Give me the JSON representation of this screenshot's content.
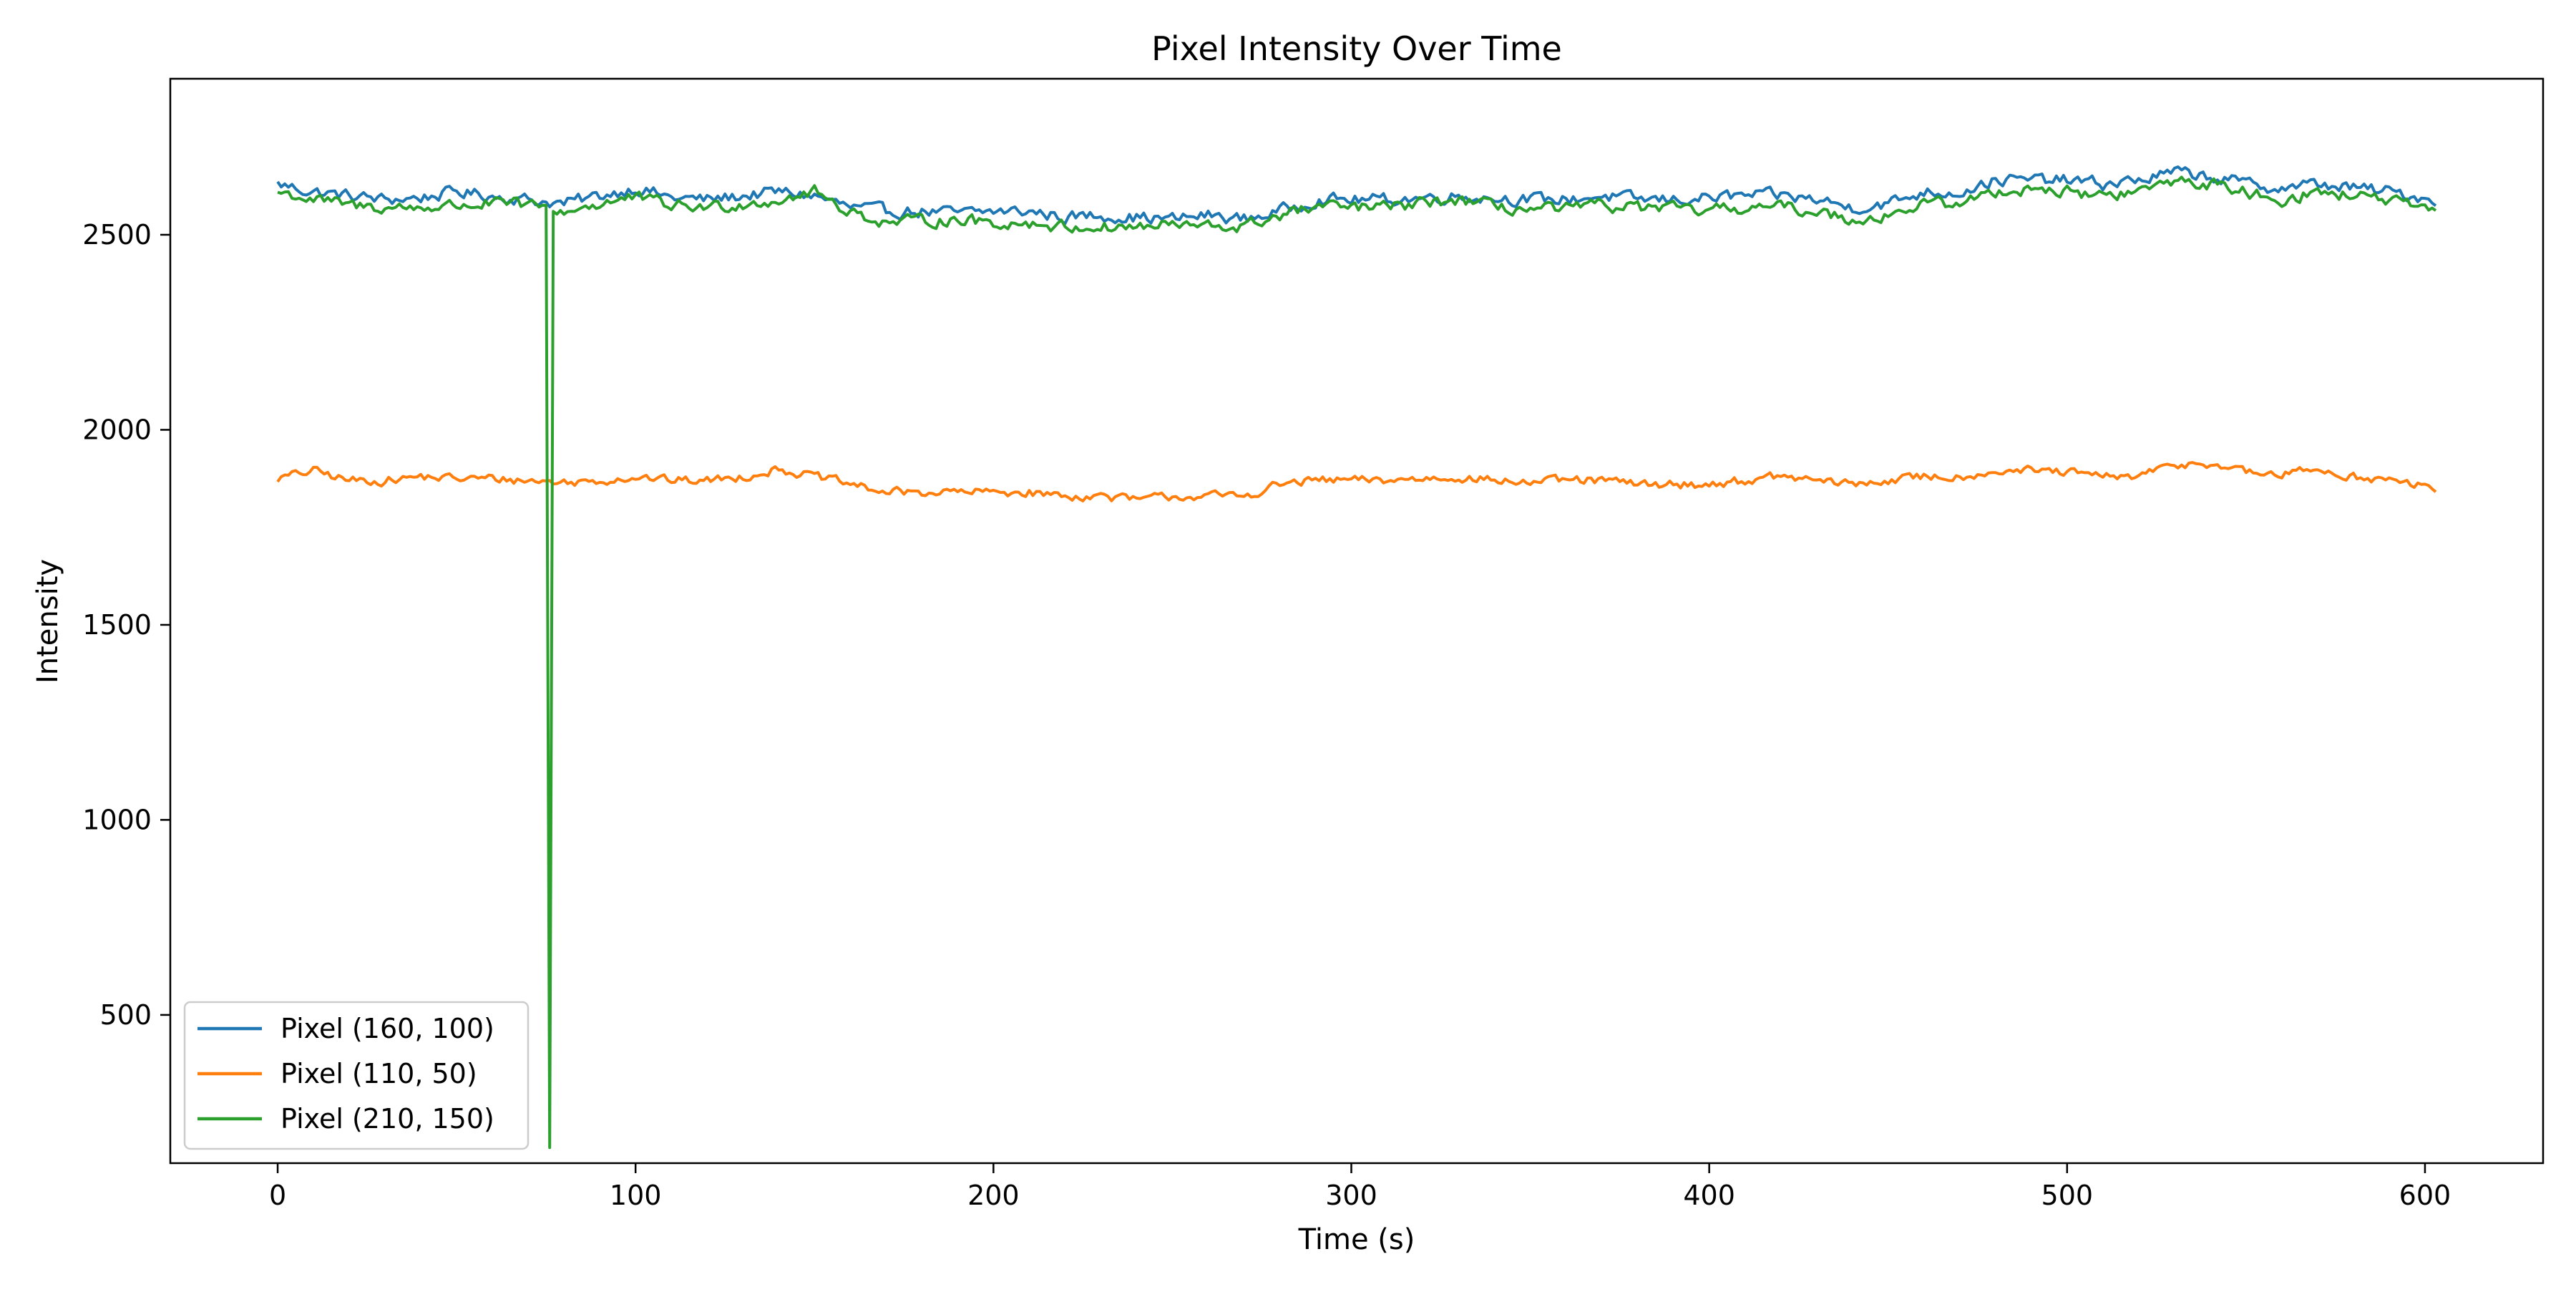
{
  "chart_data": {
    "type": "line",
    "title": "Pixel Intensity Over Time",
    "xlabel": "Time (s)",
    "ylabel": "Intensity",
    "xlim": [
      -30,
      633
    ],
    "ylim": [
      120,
      2900
    ],
    "xticks": [
      0,
      100,
      200,
      300,
      400,
      500,
      600
    ],
    "yticks": [
      500,
      1000,
      1500,
      2000,
      2500
    ],
    "grid": false,
    "legend_position": "lower-left",
    "x_range": [
      0,
      603
    ],
    "series": [
      {
        "name": "Pixel (160, 100)",
        "color": "#1f77b4",
        "anchors": [
          [
            0,
            2630
          ],
          [
            10,
            2610
          ],
          [
            20,
            2600
          ],
          [
            30,
            2590
          ],
          [
            40,
            2595
          ],
          [
            50,
            2610
          ],
          [
            60,
            2600
          ],
          [
            70,
            2590
          ],
          [
            80,
            2580
          ],
          [
            90,
            2600
          ],
          [
            100,
            2620
          ],
          [
            110,
            2595
          ],
          [
            120,
            2590
          ],
          [
            130,
            2600
          ],
          [
            140,
            2610
          ],
          [
            150,
            2600
          ],
          [
            160,
            2570
          ],
          [
            170,
            2560
          ],
          [
            180,
            2560
          ],
          [
            190,
            2555
          ],
          [
            200,
            2560
          ],
          [
            210,
            2560
          ],
          [
            220,
            2545
          ],
          [
            230,
            2550
          ],
          [
            240,
            2545
          ],
          [
            250,
            2540
          ],
          [
            260,
            2550
          ],
          [
            270,
            2540
          ],
          [
            280,
            2560
          ],
          [
            290,
            2590
          ],
          [
            300,
            2590
          ],
          [
            310,
            2590
          ],
          [
            320,
            2595
          ],
          [
            330,
            2600
          ],
          [
            340,
            2595
          ],
          [
            350,
            2590
          ],
          [
            360,
            2590
          ],
          [
            370,
            2600
          ],
          [
            380,
            2590
          ],
          [
            390,
            2590
          ],
          [
            400,
            2595
          ],
          [
            410,
            2600
          ],
          [
            420,
            2600
          ],
          [
            430,
            2590
          ],
          [
            440,
            2570
          ],
          [
            450,
            2580
          ],
          [
            460,
            2610
          ],
          [
            470,
            2610
          ],
          [
            480,
            2640
          ],
          [
            490,
            2640
          ],
          [
            500,
            2640
          ],
          [
            510,
            2630
          ],
          [
            520,
            2640
          ],
          [
            530,
            2660
          ],
          [
            540,
            2650
          ],
          [
            550,
            2630
          ],
          [
            560,
            2620
          ],
          [
            570,
            2630
          ],
          [
            580,
            2620
          ],
          [
            590,
            2610
          ],
          [
            603,
            2590
          ]
        ],
        "noise": 25
      },
      {
        "name": "Pixel (110, 50)",
        "color": "#ff7f0e",
        "anchors": [
          [
            0,
            1875
          ],
          [
            10,
            1895
          ],
          [
            20,
            1870
          ],
          [
            30,
            1870
          ],
          [
            40,
            1880
          ],
          [
            50,
            1875
          ],
          [
            60,
            1875
          ],
          [
            70,
            1870
          ],
          [
            80,
            1865
          ],
          [
            90,
            1870
          ],
          [
            100,
            1880
          ],
          [
            110,
            1870
          ],
          [
            120,
            1870
          ],
          [
            130,
            1880
          ],
          [
            140,
            1900
          ],
          [
            150,
            1880
          ],
          [
            160,
            1860
          ],
          [
            170,
            1840
          ],
          [
            180,
            1840
          ],
          [
            190,
            1840
          ],
          [
            200,
            1840
          ],
          [
            210,
            1840
          ],
          [
            220,
            1830
          ],
          [
            230,
            1830
          ],
          [
            240,
            1820
          ],
          [
            250,
            1830
          ],
          [
            260,
            1830
          ],
          [
            270,
            1830
          ],
          [
            280,
            1860
          ],
          [
            290,
            1870
          ],
          [
            300,
            1870
          ],
          [
            310,
            1870
          ],
          [
            320,
            1875
          ],
          [
            330,
            1880
          ],
          [
            340,
            1870
          ],
          [
            350,
            1865
          ],
          [
            360,
            1870
          ],
          [
            370,
            1870
          ],
          [
            380,
            1860
          ],
          [
            390,
            1860
          ],
          [
            400,
            1860
          ],
          [
            410,
            1870
          ],
          [
            420,
            1880
          ],
          [
            430,
            1870
          ],
          [
            440,
            1860
          ],
          [
            450,
            1870
          ],
          [
            460,
            1880
          ],
          [
            470,
            1880
          ],
          [
            480,
            1895
          ],
          [
            490,
            1895
          ],
          [
            500,
            1890
          ],
          [
            510,
            1880
          ],
          [
            520,
            1880
          ],
          [
            530,
            1910
          ],
          [
            540,
            1915
          ],
          [
            550,
            1890
          ],
          [
            560,
            1885
          ],
          [
            570,
            1900
          ],
          [
            580,
            1880
          ],
          [
            590,
            1870
          ],
          [
            603,
            1850
          ]
        ],
        "noise": 18
      },
      {
        "name": "Pixel (210, 150)",
        "color": "#2ca02c",
        "anchors": [
          [
            0,
            2610
          ],
          [
            10,
            2590
          ],
          [
            20,
            2575
          ],
          [
            30,
            2570
          ],
          [
            40,
            2570
          ],
          [
            50,
            2575
          ],
          [
            60,
            2580
          ],
          [
            70,
            2575
          ],
          [
            74,
            2570
          ],
          [
            75,
            2570
          ],
          [
            76,
            160
          ],
          [
            77,
            2560
          ],
          [
            80,
            2560
          ],
          [
            90,
            2580
          ],
          [
            100,
            2595
          ],
          [
            110,
            2575
          ],
          [
            120,
            2570
          ],
          [
            130,
            2580
          ],
          [
            140,
            2590
          ],
          [
            150,
            2610
          ],
          [
            160,
            2560
          ],
          [
            170,
            2530
          ],
          [
            180,
            2535
          ],
          [
            190,
            2540
          ],
          [
            200,
            2530
          ],
          [
            210,
            2530
          ],
          [
            220,
            2520
          ],
          [
            230,
            2520
          ],
          [
            240,
            2520
          ],
          [
            250,
            2525
          ],
          [
            260,
            2520
          ],
          [
            270,
            2520
          ],
          [
            280,
            2550
          ],
          [
            290,
            2570
          ],
          [
            300,
            2570
          ],
          [
            310,
            2570
          ],
          [
            320,
            2580
          ],
          [
            330,
            2590
          ],
          [
            340,
            2570
          ],
          [
            350,
            2565
          ],
          [
            360,
            2565
          ],
          [
            370,
            2575
          ],
          [
            380,
            2570
          ],
          [
            390,
            2565
          ],
          [
            400,
            2560
          ],
          [
            410,
            2570
          ],
          [
            420,
            2570
          ],
          [
            430,
            2560
          ],
          [
            440,
            2540
          ],
          [
            450,
            2550
          ],
          [
            460,
            2580
          ],
          [
            470,
            2580
          ],
          [
            480,
            2610
          ],
          [
            490,
            2620
          ],
          [
            500,
            2610
          ],
          [
            510,
            2600
          ],
          [
            520,
            2610
          ],
          [
            530,
            2640
          ],
          [
            540,
            2630
          ],
          [
            550,
            2610
          ],
          [
            560,
            2590
          ],
          [
            570,
            2610
          ],
          [
            580,
            2600
          ],
          [
            590,
            2590
          ],
          [
            603,
            2550
          ]
        ],
        "noise": 25
      }
    ]
  }
}
